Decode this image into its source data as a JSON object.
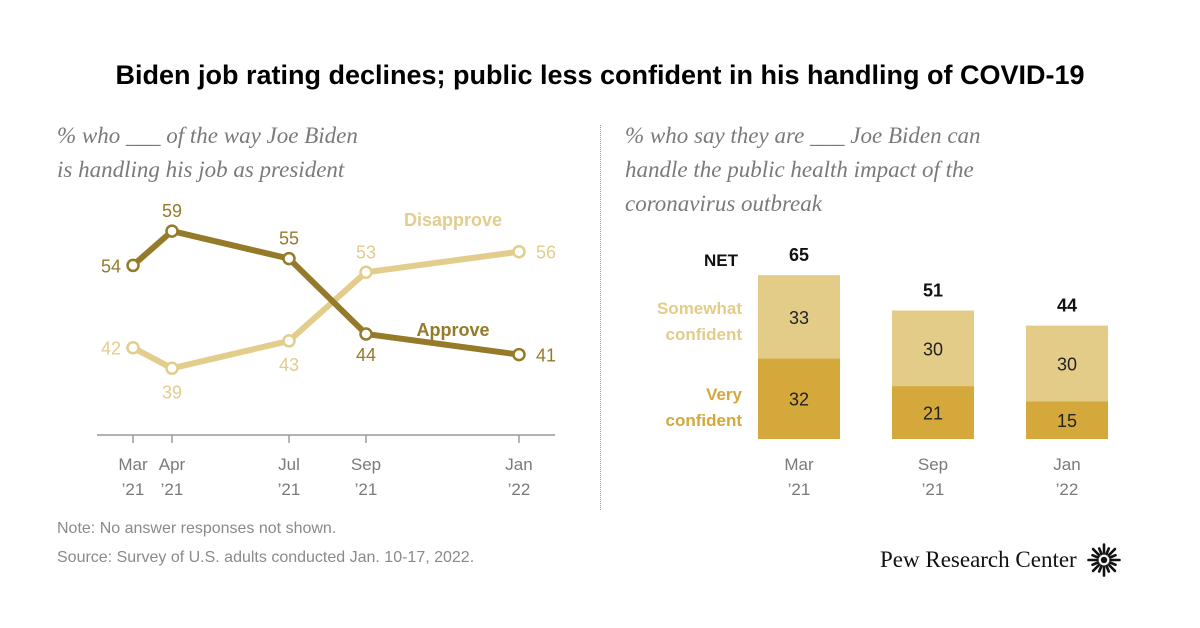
{
  "title": "Biden job rating declines; public less confident in his handling of COVID-19",
  "left_subtitle_lines": [
    "% who ___ of the way Joe Biden",
    "is handling his job as president"
  ],
  "right_subtitle_lines": [
    "% who say they are ___ Joe Biden can",
    "handle the public health impact of the",
    "coronavirus outbreak"
  ],
  "note": "Note: No answer responses not shown.",
  "source": "Source: Survey of U.S. adults conducted Jan. 10-17, 2022.",
  "brand": "Pew Research Center",
  "brand_logo_icon": "sunburst-logo-icon",
  "colors": {
    "approve": "#957a2a",
    "disapprove": "#e2cd8c",
    "somewhat": "#e3cc88",
    "very": "#d4a83a",
    "axis": "#9a9a9a",
    "tick_text": "#7a7a7a"
  },
  "chart_data": [
    {
      "type": "line",
      "x_categories": [
        {
          "label1": "Mar",
          "label2": "’21"
        },
        {
          "label1": "Apr",
          "label2": "’21"
        },
        {
          "label1": "Jul",
          "label2": "’21"
        },
        {
          "label1": "Sep",
          "label2": "’21"
        },
        {
          "label1": "Jan",
          "label2": "’22"
        }
      ],
      "x": [
        "2021-03",
        "2021-04",
        "2021-07",
        "2021-09",
        "2022-01"
      ],
      "ylim": [
        30,
        65
      ],
      "grid": false,
      "series": [
        {
          "name": "Approve",
          "values": [
            54,
            59,
            55,
            44,
            41
          ],
          "color": "#957a2a"
        },
        {
          "name": "Disapprove",
          "values": [
            42,
            39,
            43,
            53,
            56
          ],
          "color": "#e2cd8c"
        }
      ]
    },
    {
      "type": "bar",
      "stacked": true,
      "categories": [
        {
          "label1": "Mar",
          "label2": "’21"
        },
        {
          "label1": "Sep",
          "label2": "’21"
        },
        {
          "label1": "Jan",
          "label2": "’22"
        }
      ],
      "net_label": "NET",
      "net_values": [
        65,
        51,
        44
      ],
      "ylim": [
        0,
        65
      ],
      "series": [
        {
          "name_lines": [
            "Very",
            "confident"
          ],
          "values": [
            32,
            21,
            15
          ],
          "color": "#d4a83a"
        },
        {
          "name_lines": [
            "Somewhat",
            "confident"
          ],
          "values": [
            33,
            30,
            30
          ],
          "color": "#e3cc88"
        }
      ]
    }
  ]
}
